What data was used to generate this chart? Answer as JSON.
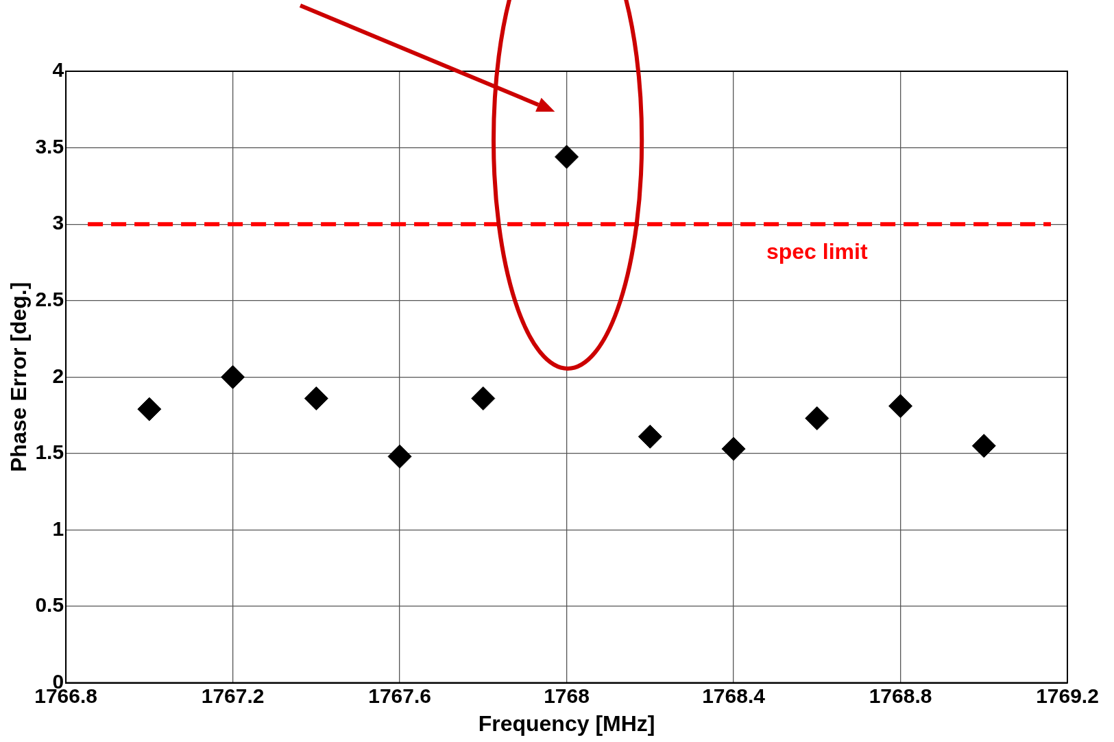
{
  "chart_data": {
    "type": "scatter",
    "xlabel": "Frequency [MHz]",
    "ylabel": "Phase Error [deg.]",
    "x": [
      1767.0,
      1767.2,
      1767.4,
      1767.6,
      1767.8,
      1768.0,
      1768.2,
      1768.4,
      1768.6,
      1768.8,
      1769.0
    ],
    "series": [
      {
        "color": "#000000",
        "values": [
          1.79,
          2.0,
          1.86,
          1.48,
          1.86,
          3.44,
          1.61,
          1.53,
          1.73,
          1.81,
          1.55
        ]
      }
    ],
    "xlim": [
      1766.8,
      1769.2
    ],
    "xticks": [
      1766.8,
      1767.2,
      1767.6,
      1768,
      1768.4,
      1768.8,
      1769.2
    ],
    "ylim": [
      0,
      4
    ],
    "yticks": [
      0,
      0.5,
      1,
      1.5,
      2,
      2.5,
      3,
      3.5,
      4
    ],
    "ref_lines": [
      {
        "axis": "y",
        "value": 3,
        "label": "spec limit",
        "color": "#ff0000",
        "line_style": "dashed"
      }
    ],
    "grid": true,
    "marker": "diamond",
    "legend": false
  }
}
